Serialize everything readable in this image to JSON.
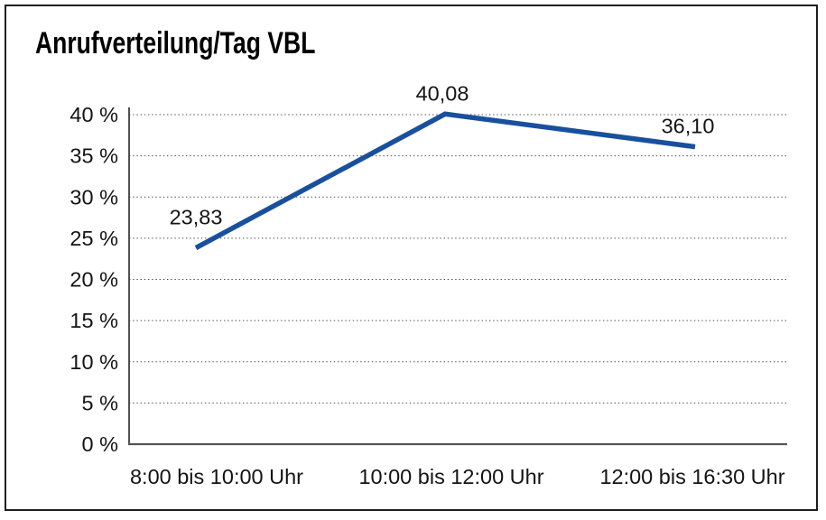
{
  "chart_data": {
    "type": "line",
    "title": "Anrufverteilung/Tag VBL",
    "categories": [
      "8:00 bis 10:00 Uhr",
      "10:00 bis 12:00 Uhr",
      "12:00 bis 16:30 Uhr"
    ],
    "values": [
      23.83,
      40.08,
      36.1
    ],
    "point_labels": [
      "23,83",
      "40,08",
      "36,10"
    ],
    "xlabel": "",
    "ylabel": "",
    "ylim": [
      0,
      40
    ],
    "ytick_step": 5,
    "ytick_labels": [
      "0 %",
      "5 %",
      "10 %",
      "15 %",
      "20 %",
      "25 %",
      "30 %",
      "35 %",
      "40 %"
    ],
    "legend": "none",
    "grid": "horizontal-dotted",
    "colors": {
      "line": "#19509e",
      "gridline": "#4a4a4a",
      "axis": "#3f3f3f",
      "text": "#141414",
      "frame_border": "#1e1e1e",
      "background": "#ffffff"
    }
  }
}
